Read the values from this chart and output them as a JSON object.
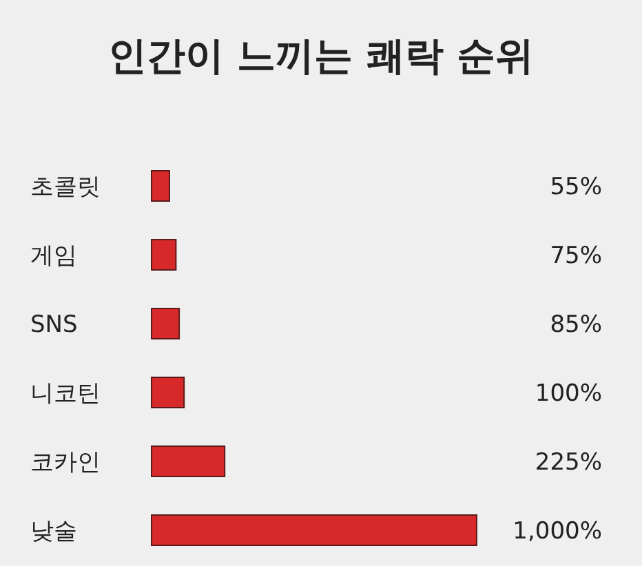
{
  "chart_data": {
    "type": "bar",
    "orientation": "horizontal",
    "title": "인간이 느끼는 쾌락 순위",
    "categories": [
      "초콜릿",
      "게임",
      "SNS",
      "니코틴",
      "코카인",
      "낮술"
    ],
    "values": [
      55,
      75,
      85,
      100,
      225,
      1000
    ],
    "value_labels": [
      "55%",
      "75%",
      "85%",
      "100%",
      "225%",
      "1,000%"
    ],
    "color": "#d7282a"
  }
}
